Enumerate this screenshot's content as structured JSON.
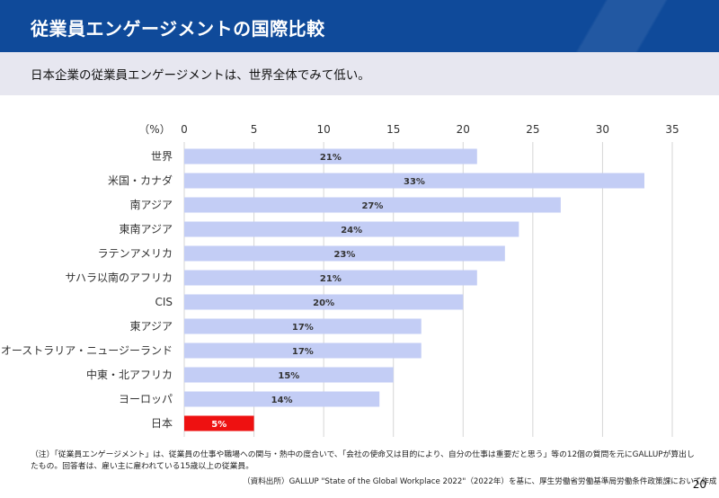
{
  "header": {
    "title": "従業員エンゲージメントの国際比較"
  },
  "subtitle": "日本企業の従業員エンゲージメントは、世界全体でみて低い。",
  "chart_data": {
    "type": "bar",
    "orientation": "horizontal",
    "unit_label": "（%）",
    "x_ticks": [
      "0",
      "5",
      "10",
      "15",
      "20",
      "25",
      "30",
      "35"
    ],
    "xlim": [
      0,
      35
    ],
    "grid": true,
    "categories": [
      "世界",
      "米国・カナダ",
      "南アジア",
      "東南アジア",
      "ラテンアメリカ",
      "サハラ以南のアフリカ",
      "CIS",
      "東アジア",
      "オーストラリア・ニュージーランド",
      "中東・北アフリカ",
      "ヨーロッパ",
      "日本"
    ],
    "values": [
      21,
      33,
      27,
      24,
      23,
      21,
      20,
      17,
      17,
      15,
      14,
      5
    ],
    "data_labels": [
      "21%",
      "33%",
      "27%",
      "24%",
      "23%",
      "21%",
      "20%",
      "17%",
      "17%",
      "15%",
      "14%",
      "5%"
    ],
    "colors": {
      "bar": "#c3cdf5",
      "highlight": "#ee1111",
      "grid": "#d6d6d6"
    },
    "highlight_category": "日本"
  },
  "footnote": "（注）「従業員エンゲージメント」は、従業員の仕事や職場への関与・熱中の度合いで、「会社の使命又は目的により、自分の仕事は重要だと思う」等の12個の質問を元にGALLUPが算出したもの。回答者は、雇い主に雇われている15歳以上の従業員。",
  "source": "（資料出所）GALLUP \"State of the Global Workplace 2022\"（2022年）を基に、厚生労働省労働基準局労働条件政策課において作成",
  "page_number": "20",
  "colors": {
    "header_bg": "#0f4a9a",
    "subbar_bg": "#e7e7f0"
  }
}
